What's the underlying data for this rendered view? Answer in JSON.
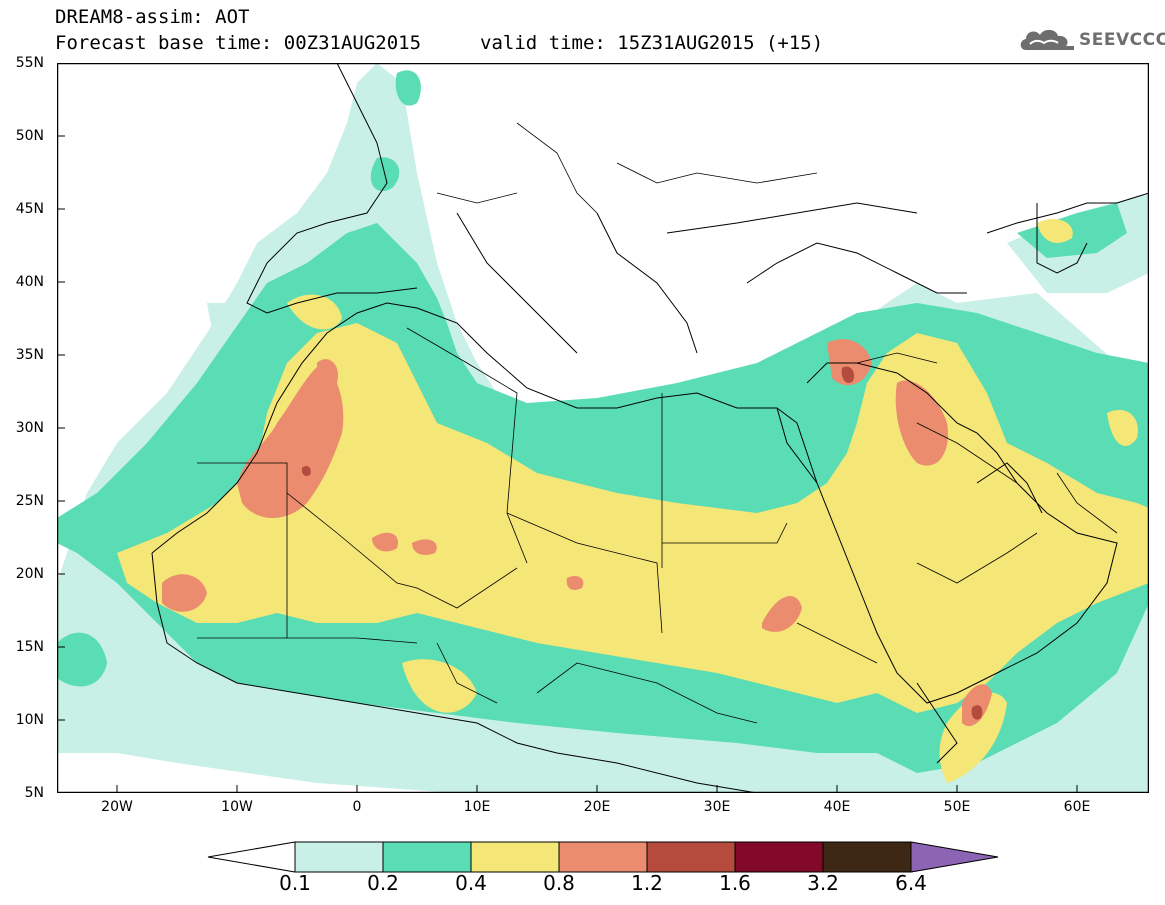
{
  "header": {
    "line1": "DREAM8-assim: AOT",
    "line2": "Forecast base time: 00Z31AUG2015",
    "valid": "valid time: 15Z31AUG2015 (+15)"
  },
  "logo": {
    "text": "SEEVCCC",
    "icon": "cloud-icon"
  },
  "map_data": {
    "type": "filled-contour-map",
    "variable": "AOT",
    "extent": {
      "lon": [
        -25,
        65
      ],
      "lat": [
        5,
        55
      ]
    },
    "grid": false,
    "lat_labels": [
      "55N",
      "50N",
      "45N",
      "40N",
      "35N",
      "30N",
      "25N",
      "20N",
      "15N",
      "10N",
      "5N"
    ],
    "lon_labels": [
      "20W",
      "10W",
      "0",
      "10E",
      "20E",
      "30E",
      "40E",
      "50E",
      "60E"
    ],
    "colorbar": {
      "levels": [
        "0.1",
        "0.2",
        "0.4",
        "0.8",
        "1.2",
        "1.6",
        "3.2",
        "6.4"
      ],
      "colors": [
        "#c8f0e6",
        "#5adcb4",
        "#f5e678",
        "#eb8c6e",
        "#b44b3c",
        "#820a28",
        "#3c2814",
        "#8c64b4"
      ]
    }
  }
}
